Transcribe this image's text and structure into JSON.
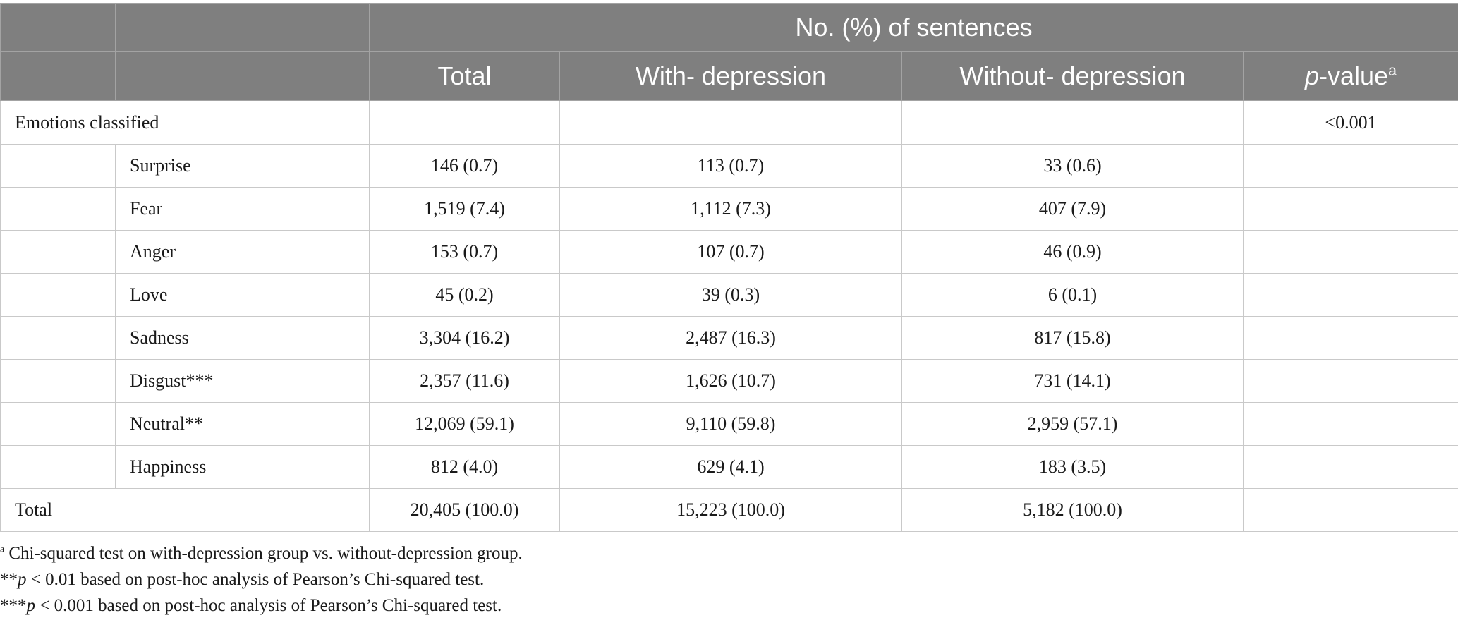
{
  "header": {
    "group_title": "No. (%) of sentences",
    "columns": {
      "total": "Total",
      "with_depression": "With- depression",
      "without_depression": "Without- depression",
      "pvalue_italic": "p",
      "pvalue_rest": "-value",
      "pvalue_sup": "a"
    }
  },
  "section": {
    "label": "Emotions classified",
    "pvalue": "<0.001"
  },
  "rows": [
    {
      "label": "Surprise",
      "total": "146 (0.7)",
      "with": "113 (0.7)",
      "without": "33 (0.6)"
    },
    {
      "label": "Fear",
      "total": "1,519 (7.4)",
      "with": "1,112 (7.3)",
      "without": "407 (7.9)"
    },
    {
      "label": "Anger",
      "total": "153 (0.7)",
      "with": "107 (0.7)",
      "without": "46 (0.9)"
    },
    {
      "label": "Love",
      "total": "45 (0.2)",
      "with": "39 (0.3)",
      "without": "6 (0.1)"
    },
    {
      "label": "Sadness",
      "total": "3,304 (16.2)",
      "with": "2,487 (16.3)",
      "without": "817 (15.8)"
    },
    {
      "label": "Disgust***",
      "total": "2,357 (11.6)",
      "with": "1,626 (10.7)",
      "without": "731 (14.1)"
    },
    {
      "label": "Neutral**",
      "total": "12,069 (59.1)",
      "with": "9,110 (59.8)",
      "without": "2,959 (57.1)"
    },
    {
      "label": "Happiness",
      "total": "812 (4.0)",
      "with": "629 (4.1)",
      "without": "183 (3.5)"
    }
  ],
  "total_row": {
    "label": "Total",
    "total": "20,405 (100.0)",
    "with": "15,223 (100.0)",
    "without": "5,182 (100.0)"
  },
  "footnotes": {
    "a_marker": "a",
    "a_text": " Chi-squared test on with-depression group vs. without-depression group.",
    "b_prefix": "**",
    "b_italic": "p",
    "b_text": " < 0.01 based on post-hoc analysis of Pearson’s Chi-squared test.",
    "c_prefix": "***",
    "c_italic": "p",
    "c_text": " < 0.001 based on post-hoc analysis of Pearson’s Chi-squared test."
  }
}
